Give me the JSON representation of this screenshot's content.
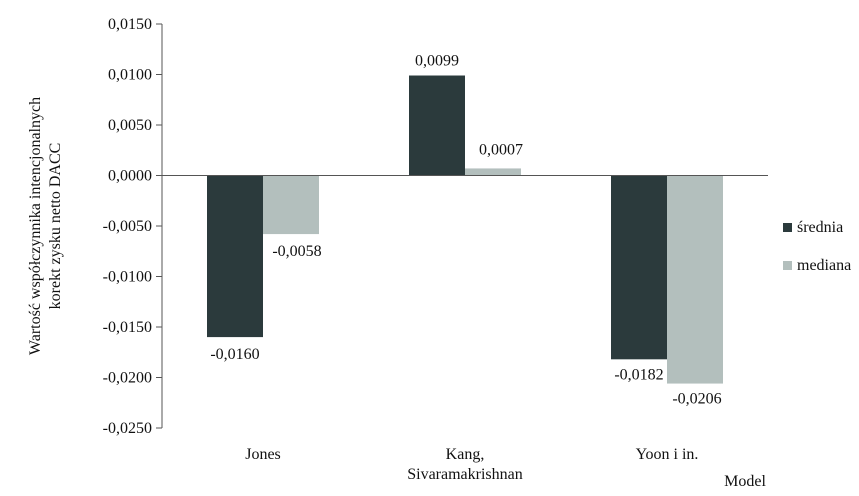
{
  "chart_data": {
    "type": "bar",
    "title": "",
    "xlabel": "Model",
    "ylabel": [
      "Wartość współczynnika intencjonalnych",
      "korekt zysku netto DACC"
    ],
    "ylim": [
      -0.025,
      0.015
    ],
    "y_ticks": [
      "0,0150",
      "0,0100",
      "0,0050",
      "0,0000",
      "-0,0050",
      "-0,0100",
      "-0,0150",
      "-0,0200",
      "-0,0250"
    ],
    "y_tick_values": [
      0.015,
      0.01,
      0.005,
      0,
      -0.005,
      -0.01,
      -0.015,
      -0.02,
      -0.025
    ],
    "categories": [
      [
        "Jones"
      ],
      [
        "Kang,",
        "Sivaramakrishnan"
      ],
      [
        "Yoon i in."
      ]
    ],
    "series": [
      {
        "name": "średnia",
        "color": "#2b3a3c",
        "values": [
          -0.016,
          0.0099,
          -0.0182
        ],
        "labels": [
          "-0,0160",
          "0,0099",
          "-0,0182"
        ]
      },
      {
        "name": "mediana",
        "color": "#b3bfbd",
        "values": [
          -0.0058,
          0.0007,
          -0.0206
        ],
        "labels": [
          "-0,0058",
          "0,0007",
          "-0,0206"
        ]
      }
    ],
    "legend_position": "right",
    "grid": false
  }
}
